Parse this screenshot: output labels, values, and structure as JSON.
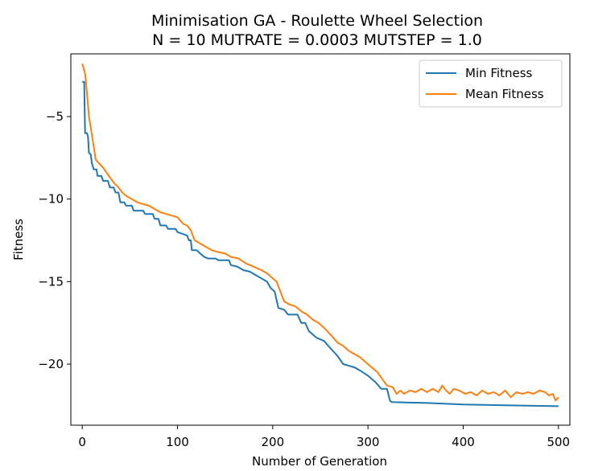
{
  "chart_data": {
    "type": "line",
    "title": "Minimisation GA - Roulette Wheel Selection",
    "subtitle": "N = 10 MUTRATE = 0.0003 MUTSTEP = 1.0",
    "xlabel": "Number of Generation",
    "ylabel": "Fitness",
    "xlim": [
      -12,
      512
    ],
    "ylim": [
      -23.7,
      -1.2
    ],
    "xticks": [
      0,
      100,
      200,
      300,
      400,
      500
    ],
    "xtick_labels": [
      "0",
      "100",
      "200",
      "300",
      "400",
      "500"
    ],
    "yticks": [
      -5,
      -10,
      -15,
      -20
    ],
    "ytick_labels": [
      "−5",
      "−10",
      "−15",
      "−20"
    ],
    "grid": false,
    "legend_position": "top-right",
    "series": [
      {
        "name": "Min Fitness",
        "color": "#1f77b4",
        "points": [
          [
            0,
            -2.9
          ],
          [
            2,
            -2.9
          ],
          [
            3,
            -6.0
          ],
          [
            5,
            -6.0
          ],
          [
            6,
            -6.2
          ],
          [
            7,
            -7.2
          ],
          [
            9,
            -7.3
          ],
          [
            10,
            -7.8
          ],
          [
            12,
            -8.2
          ],
          [
            15,
            -8.2
          ],
          [
            16,
            -8.6
          ],
          [
            20,
            -8.6
          ],
          [
            22,
            -8.9
          ],
          [
            27,
            -8.9
          ],
          [
            29,
            -9.3
          ],
          [
            33,
            -9.3
          ],
          [
            35,
            -9.6
          ],
          [
            38,
            -9.6
          ],
          [
            40,
            -10.2
          ],
          [
            44,
            -10.2
          ],
          [
            46,
            -10.4
          ],
          [
            52,
            -10.4
          ],
          [
            54,
            -10.7
          ],
          [
            64,
            -10.7
          ],
          [
            66,
            -10.9
          ],
          [
            74,
            -10.9
          ],
          [
            76,
            -11.2
          ],
          [
            80,
            -11.2
          ],
          [
            82,
            -11.6
          ],
          [
            88,
            -11.6
          ],
          [
            90,
            -11.8
          ],
          [
            98,
            -11.8
          ],
          [
            100,
            -12.0
          ],
          [
            110,
            -12.2
          ],
          [
            112,
            -12.5
          ],
          [
            114,
            -12.5
          ],
          [
            115,
            -13.1
          ],
          [
            120,
            -13.1
          ],
          [
            124,
            -13.3
          ],
          [
            128,
            -13.5
          ],
          [
            132,
            -13.6
          ],
          [
            140,
            -13.6
          ],
          [
            143,
            -13.7
          ],
          [
            154,
            -13.7
          ],
          [
            156,
            -14.0
          ],
          [
            163,
            -14.1
          ],
          [
            169,
            -14.3
          ],
          [
            176,
            -14.4
          ],
          [
            182,
            -14.6
          ],
          [
            188,
            -14.8
          ],
          [
            194,
            -15.0
          ],
          [
            198,
            -15.4
          ],
          [
            202,
            -15.6
          ],
          [
            206,
            -16.6
          ],
          [
            212,
            -16.7
          ],
          [
            216,
            -17.0
          ],
          [
            226,
            -17.0
          ],
          [
            230,
            -17.5
          ],
          [
            234,
            -17.5
          ],
          [
            238,
            -18.0
          ],
          [
            246,
            -18.4
          ],
          [
            254,
            -18.6
          ],
          [
            260,
            -19.0
          ],
          [
            268,
            -19.5
          ],
          [
            274,
            -20.0
          ],
          [
            280,
            -20.1
          ],
          [
            286,
            -20.2
          ],
          [
            292,
            -20.4
          ],
          [
            300,
            -20.7
          ],
          [
            308,
            -21.1
          ],
          [
            314,
            -21.5
          ],
          [
            320,
            -21.5
          ],
          [
            323,
            -22.2
          ],
          [
            325,
            -22.3
          ],
          [
            360,
            -22.35
          ],
          [
            400,
            -22.45
          ],
          [
            450,
            -22.5
          ],
          [
            500,
            -22.55
          ]
        ]
      },
      {
        "name": "Mean Fitness",
        "color": "#ff7f0e",
        "points": [
          [
            0,
            -1.8
          ],
          [
            3,
            -2.4
          ],
          [
            5,
            -3.6
          ],
          [
            7,
            -5.0
          ],
          [
            9,
            -5.7
          ],
          [
            12,
            -6.8
          ],
          [
            14,
            -7.6
          ],
          [
            17,
            -7.8
          ],
          [
            22,
            -8.1
          ],
          [
            28,
            -8.6
          ],
          [
            33,
            -9.0
          ],
          [
            38,
            -9.3
          ],
          [
            42,
            -9.6
          ],
          [
            46,
            -9.8
          ],
          [
            52,
            -10.0
          ],
          [
            58,
            -10.2
          ],
          [
            64,
            -10.3
          ],
          [
            70,
            -10.4
          ],
          [
            76,
            -10.6
          ],
          [
            82,
            -10.8
          ],
          [
            88,
            -10.9
          ],
          [
            94,
            -11.0
          ],
          [
            100,
            -11.1
          ],
          [
            106,
            -11.5
          ],
          [
            110,
            -11.6
          ],
          [
            114,
            -11.9
          ],
          [
            118,
            -12.5
          ],
          [
            124,
            -12.7
          ],
          [
            130,
            -12.9
          ],
          [
            136,
            -13.1
          ],
          [
            142,
            -13.2
          ],
          [
            150,
            -13.3
          ],
          [
            156,
            -13.5
          ],
          [
            164,
            -13.6
          ],
          [
            172,
            -13.9
          ],
          [
            180,
            -14.1
          ],
          [
            188,
            -14.3
          ],
          [
            194,
            -14.5
          ],
          [
            200,
            -14.8
          ],
          [
            204,
            -15.0
          ],
          [
            208,
            -15.6
          ],
          [
            212,
            -16.2
          ],
          [
            218,
            -16.4
          ],
          [
            224,
            -16.5
          ],
          [
            230,
            -16.8
          ],
          [
            236,
            -17.0
          ],
          [
            242,
            -17.3
          ],
          [
            248,
            -17.5
          ],
          [
            254,
            -17.8
          ],
          [
            262,
            -18.3
          ],
          [
            268,
            -18.7
          ],
          [
            274,
            -18.9
          ],
          [
            280,
            -19.2
          ],
          [
            286,
            -19.4
          ],
          [
            292,
            -19.6
          ],
          [
            298,
            -19.9
          ],
          [
            304,
            -20.2
          ],
          [
            310,
            -20.5
          ],
          [
            315,
            -20.9
          ],
          [
            320,
            -21.3
          ],
          [
            326,
            -21.4
          ],
          [
            330,
            -21.8
          ],
          [
            334,
            -21.6
          ],
          [
            338,
            -21.8
          ],
          [
            344,
            -21.6
          ],
          [
            350,
            -21.7
          ],
          [
            356,
            -21.5
          ],
          [
            362,
            -21.7
          ],
          [
            368,
            -21.5
          ],
          [
            374,
            -21.7
          ],
          [
            378,
            -21.3
          ],
          [
            382,
            -21.6
          ],
          [
            386,
            -21.8
          ],
          [
            390,
            -21.5
          ],
          [
            396,
            -21.6
          ],
          [
            402,
            -21.8
          ],
          [
            408,
            -21.7
          ],
          [
            414,
            -21.9
          ],
          [
            420,
            -21.6
          ],
          [
            426,
            -21.8
          ],
          [
            432,
            -21.7
          ],
          [
            438,
            -21.9
          ],
          [
            444,
            -21.6
          ],
          [
            450,
            -22.0
          ],
          [
            456,
            -21.7
          ],
          [
            462,
            -21.8
          ],
          [
            468,
            -21.7
          ],
          [
            474,
            -21.8
          ],
          [
            480,
            -21.6
          ],
          [
            486,
            -21.7
          ],
          [
            490,
            -21.9
          ],
          [
            494,
            -21.8
          ],
          [
            497,
            -22.2
          ],
          [
            500,
            -22.0
          ]
        ]
      }
    ]
  }
}
